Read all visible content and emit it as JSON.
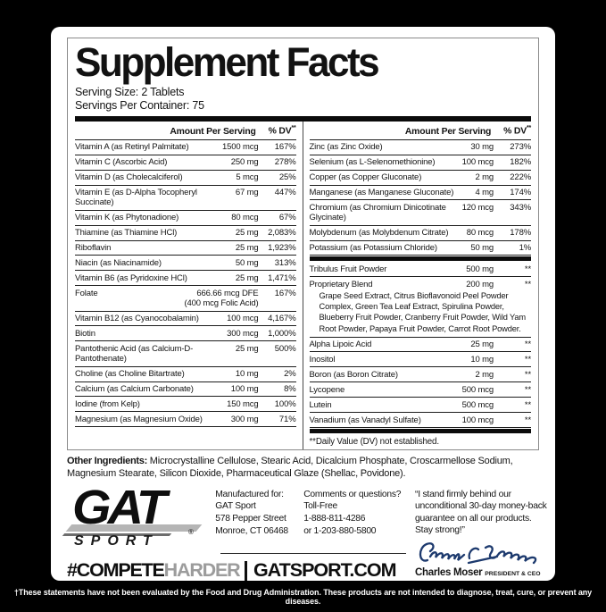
{
  "title": "Supplement Facts",
  "serving": {
    "size": "Serving Size: 2 Tablets",
    "per_container": "Servings Per Container: 75"
  },
  "table": {
    "header_amount": "Amount Per Serving",
    "header_dv": "% DV",
    "header_dv_sup": "**",
    "left_rows": [
      {
        "name": "Vitamin A (as Retinyl Palmitate)",
        "amount": "1500 mcg",
        "dv": "167%"
      },
      {
        "name": "Vitamin C (Ascorbic Acid)",
        "amount": "250 mg",
        "dv": "278%"
      },
      {
        "name": "Vitamin D (as Cholecalciferol)",
        "amount": "5 mcg",
        "dv": "25%"
      },
      {
        "name": "Vitamin E (as D-Alpha Tocopheryl Succinate)",
        "amount": "67 mg",
        "dv": "447%"
      },
      {
        "name": "Vitamin K (as Phytonadione)",
        "amount": "80 mcg",
        "dv": "67%"
      },
      {
        "name": "Thiamine (as Thiamine HCl)",
        "amount": "25 mg",
        "dv": "2,083%"
      },
      {
        "name": "Riboflavin",
        "amount": "25 mg",
        "dv": "1,923%"
      },
      {
        "name": "Niacin (as Niacinamide)",
        "amount": "50 mg",
        "dv": "313%"
      },
      {
        "name": "Vitamin B6 (as Pyridoxine HCl)",
        "amount": "25 mg",
        "dv": "1,471%"
      },
      {
        "name": "Folate",
        "amount": "666.66 mcg DFE",
        "amount2": "(400 mcg Folic Acid)",
        "dv": "167%"
      },
      {
        "name": "Vitamin B12 (as Cyanocobalamin)",
        "amount": "100 mcg",
        "dv": "4,167%"
      },
      {
        "name": "Biotin",
        "amount": "300 mcg",
        "dv": "1,000%"
      },
      {
        "name": "Pantothenic Acid (as Calcium-D-Pantothenate)",
        "amount": "25 mg",
        "dv": "500%"
      },
      {
        "name": "Choline (as Choline Bitartrate)",
        "amount": "10 mg",
        "dv": "2%"
      },
      {
        "name": "Calcium (as Calcium Carbonate)",
        "amount": "100 mg",
        "dv": "8%"
      },
      {
        "name": "Iodine (from Kelp)",
        "amount": "150 mcg",
        "dv": "100%"
      },
      {
        "name": "Magnesium (as Magnesium Oxide)",
        "amount": "300 mg",
        "dv": "71%"
      }
    ],
    "right_rows_minerals": [
      {
        "name": "Zinc (as Zinc Oxide)",
        "amount": "30 mg",
        "dv": "273%"
      },
      {
        "name": "Selenium (as L-Selenomethionine)",
        "amount": "100 mcg",
        "dv": "182%"
      },
      {
        "name": "Copper (as Copper Gluconate)",
        "amount": "2 mg",
        "dv": "222%"
      },
      {
        "name": "Manganese (as Manganese Gluconate)",
        "amount": "4 mg",
        "dv": "174%"
      },
      {
        "name": "Chromium (as Chromium Dinicotinate Glycinate)",
        "amount": "120 mcg",
        "dv": "343%"
      },
      {
        "name": "Molybdenum (as Molybdenum Citrate)",
        "amount": "80 mcg",
        "dv": "178%"
      },
      {
        "name": "Potassium (as Potassium Chloride)",
        "amount": "50 mg",
        "dv": "1%"
      }
    ],
    "right_rows_botanicals": [
      {
        "name": "Tribulus Fruit Powder",
        "amount": "500 mg",
        "dv": "**"
      },
      {
        "name": "Proprietary Blend",
        "amount": "200 mg",
        "dv": "**",
        "sub": "Grape Seed Extract, Citrus Bioflavonoid Peel Powder Complex, Green Tea Leaf Extract, Spirulina Powder, Blueberry Fruit Powder, Cranberry Fruit Powder, Wild Yam Root Powder, Papaya Fruit Powder, Carrot Root Powder."
      },
      {
        "name": "Alpha Lipoic Acid",
        "amount": "25 mg",
        "dv": "**"
      },
      {
        "name": "Inositol",
        "amount": "10 mg",
        "dv": "**"
      },
      {
        "name": "Boron (as Boron Citrate)",
        "amount": "2 mg",
        "dv": "**"
      },
      {
        "name": "Lycopene",
        "amount": "500 mcg",
        "dv": "**"
      },
      {
        "name": "Lutein",
        "amount": "500 mcg",
        "dv": "**"
      },
      {
        "name": "Vanadium (as Vanadyl Sulfate)",
        "amount": "100 mcg",
        "dv": "**"
      }
    ],
    "dv_note": "**Daily Value (DV) not established."
  },
  "other_ingredients": {
    "label": "Other Ingredients:",
    "text": " Microcrystalline Cellulose, Stearic Acid, Dicalcium Phosphate, Croscarmellose Sodium, Magnesium Stearate, Silicon Dioxide, Pharmaceutical Glaze (Shellac, Povidone)."
  },
  "footer": {
    "logo": "GAT",
    "logo_reg": "®",
    "logo_sub": "SPORT",
    "hashtag_black": "#COMPETE",
    "hashtag_gray": "HARDER",
    "site": "GATSPORT.COM",
    "manufactured": [
      "Manufactured for:",
      "GAT Sport",
      "578 Pepper Street",
      "Monroe, CT 06468"
    ],
    "comments": [
      "Comments or questions?",
      "Toll-Free",
      "1-888-811-4286",
      "or 1-203-880-5800"
    ],
    "quote": "“I stand firmly behind our unconditional 30-day money-back guarantee on all our products. Stay strong!”",
    "signer_name": "Charles Moser",
    "signer_title": "PRESIDENT & CEO"
  },
  "disclaimer": "†These statements have not been evaluated by the Food and Drug Administration. These products are not intended to diagnose, treat, cure, or prevent any diseases.",
  "colors": {
    "background": "#000000",
    "panel": "#ffffff",
    "ink": "#141414",
    "hashtag_gray": "#9c9c9c",
    "signature_blue": "#1d3a6e"
  }
}
